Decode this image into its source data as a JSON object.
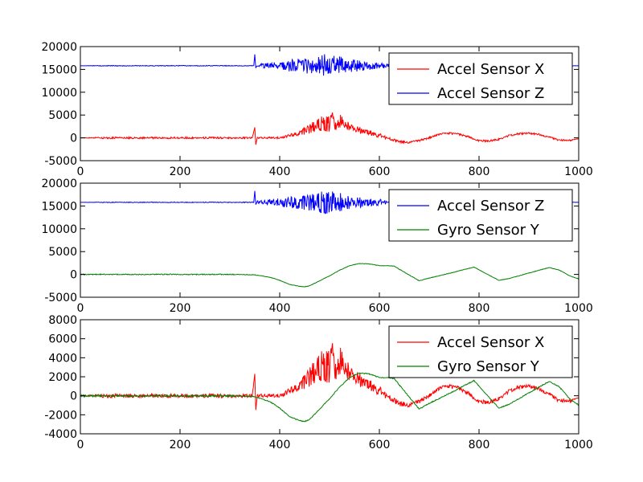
{
  "chart_data": [
    {
      "type": "line",
      "xlim": [
        0,
        1000
      ],
      "ylim": [
        -5000,
        20000
      ],
      "x_ticks": [
        0,
        200,
        400,
        600,
        800,
        1000
      ],
      "y_ticks": [
        -5000,
        0,
        5000,
        10000,
        15000,
        20000
      ],
      "legend_position": "upper-right",
      "grid": false,
      "series": [
        {
          "name": "Accel Sensor X",
          "color": "#ff0000",
          "x": [
            0,
            50,
            100,
            150,
            200,
            250,
            300,
            345,
            350,
            352,
            355,
            360,
            400,
            430,
            450,
            470,
            480,
            490,
            500,
            505,
            510,
            520,
            525,
            530,
            550,
            580,
            600,
            620,
            640,
            660,
            680,
            700,
            720,
            740,
            760,
            780,
            800,
            820,
            840,
            860,
            880,
            900,
            920,
            940,
            960,
            980,
            1000
          ],
          "y": [
            0,
            0,
            0,
            0,
            0,
            0,
            0,
            0,
            2300,
            -1500,
            0,
            0,
            0,
            800,
            1500,
            2500,
            3000,
            3300,
            3000,
            5500,
            2500,
            3500,
            4000,
            3000,
            2000,
            1200,
            500,
            -200,
            -800,
            -1000,
            -600,
            0,
            800,
            1000,
            800,
            200,
            -600,
            -700,
            -300,
            500,
            900,
            1000,
            800,
            200,
            -500,
            -600,
            -200
          ],
          "noise": [
            0,
            200,
            200,
            200,
            200,
            200,
            200,
            150,
            0,
            0,
            150,
            200,
            200,
            400,
            800,
            1300,
            1500,
            1800,
            1800,
            600,
            1500,
            1500,
            1200,
            1000,
            800,
            600,
            500,
            300,
            300,
            200,
            200,
            200,
            200,
            200,
            200,
            200,
            200,
            200,
            200,
            200,
            200,
            200,
            200,
            200,
            200,
            200,
            0
          ]
        },
        {
          "name": "Accel Sensor Z",
          "color": "#0000ff",
          "x": [
            0,
            50,
            100,
            150,
            200,
            250,
            300,
            348,
            350,
            352,
            355,
            360,
            380,
            400,
            420,
            450,
            470,
            480,
            490,
            500,
            505,
            510,
            520,
            530,
            560,
            580,
            600,
            620,
            650,
            700,
            750,
            800,
            850,
            900,
            950,
            1000
          ],
          "y": [
            15800,
            15800,
            15800,
            15800,
            15800,
            15800,
            15800,
            15800,
            18300,
            15300,
            15900,
            15800,
            15800,
            15800,
            15800,
            15800,
            15800,
            15800,
            15800,
            15800,
            15800,
            15800,
            15800,
            15800,
            15800,
            15800,
            15800,
            15800,
            15800,
            15800,
            15800,
            15800,
            15800,
            15800,
            15800,
            15800
          ],
          "noise": [
            0,
            80,
            80,
            80,
            80,
            80,
            80,
            80,
            0,
            0,
            300,
            400,
            700,
            900,
            1300,
            1700,
            2000,
            2300,
            2600,
            2400,
            3000,
            2600,
            2200,
            1600,
            1200,
            900,
            700,
            400,
            200,
            200,
            200,
            200,
            200,
            200,
            200,
            0
          ]
        }
      ]
    },
    {
      "type": "line",
      "xlim": [
        0,
        1000
      ],
      "ylim": [
        -5000,
        20000
      ],
      "x_ticks": [
        0,
        200,
        400,
        600,
        800,
        1000
      ],
      "y_ticks": [
        -5000,
        0,
        5000,
        10000,
        15000,
        20000
      ],
      "legend_position": "upper-right",
      "grid": false,
      "series": [
        {
          "name": "Accel Sensor Z",
          "color": "#0000ff",
          "x": [
            0,
            50,
            100,
            150,
            200,
            250,
            300,
            348,
            350,
            352,
            355,
            360,
            380,
            400,
            420,
            450,
            470,
            480,
            490,
            500,
            505,
            510,
            520,
            530,
            560,
            580,
            600,
            620,
            650,
            700,
            750,
            800,
            850,
            900,
            950,
            1000
          ],
          "y": [
            15800,
            15800,
            15800,
            15800,
            15800,
            15800,
            15800,
            15800,
            18300,
            15300,
            15900,
            15800,
            15800,
            15800,
            15800,
            15800,
            15800,
            15800,
            15800,
            15800,
            15800,
            15800,
            15800,
            15800,
            15800,
            15800,
            15800,
            15800,
            15800,
            15800,
            15800,
            15800,
            15800,
            15800,
            15800,
            15800
          ],
          "noise": [
            0,
            80,
            80,
            80,
            80,
            80,
            80,
            80,
            0,
            0,
            300,
            400,
            700,
            900,
            1300,
            1700,
            2000,
            2300,
            2600,
            2400,
            3000,
            2600,
            2200,
            1600,
            1200,
            900,
            700,
            400,
            200,
            200,
            200,
            200,
            200,
            200,
            200,
            0
          ]
        },
        {
          "name": "Gyro Sensor Y",
          "color": "#008000",
          "x": [
            0,
            100,
            200,
            300,
            350,
            380,
            400,
            420,
            440,
            450,
            460,
            480,
            500,
            520,
            540,
            560,
            580,
            600,
            620,
            630,
            650,
            680,
            700,
            750,
            790,
            840,
            860,
            900,
            940,
            960,
            980,
            1000
          ],
          "y": [
            0,
            0,
            0,
            0,
            -100,
            -600,
            -1300,
            -2200,
            -2600,
            -2700,
            -2500,
            -1400,
            -300,
            900,
            1900,
            2400,
            2300,
            1900,
            1900,
            1800,
            500,
            -1400,
            -800,
            500,
            1600,
            -1300,
            -900,
            300,
            1500,
            1000,
            -200,
            -1000
          ],
          "noise": [
            100,
            100,
            100,
            100,
            50,
            50,
            50,
            50,
            50,
            50,
            50,
            50,
            50,
            50,
            50,
            50,
            50,
            50,
            50,
            50,
            50,
            50,
            50,
            50,
            50,
            50,
            50,
            50,
            50,
            50,
            50,
            50
          ]
        }
      ]
    },
    {
      "type": "line",
      "xlim": [
        0,
        1000
      ],
      "ylim": [
        -4000,
        8000
      ],
      "x_ticks": [
        0,
        200,
        400,
        600,
        800,
        1000
      ],
      "y_ticks": [
        -4000,
        -2000,
        0,
        2000,
        4000,
        6000,
        8000
      ],
      "legend_position": "upper-right",
      "grid": false,
      "series": [
        {
          "name": "Accel Sensor X",
          "color": "#ff0000",
          "x": [
            0,
            50,
            100,
            150,
            200,
            250,
            300,
            345,
            350,
            352,
            355,
            360,
            400,
            430,
            450,
            470,
            480,
            490,
            500,
            505,
            510,
            520,
            525,
            530,
            550,
            580,
            600,
            620,
            640,
            660,
            680,
            700,
            720,
            740,
            760,
            780,
            800,
            820,
            840,
            860,
            880,
            900,
            920,
            940,
            960,
            980,
            1000
          ],
          "y": [
            0,
            0,
            0,
            0,
            0,
            0,
            0,
            0,
            2300,
            -1500,
            0,
            0,
            0,
            800,
            1500,
            2500,
            3000,
            3300,
            3000,
            5500,
            2500,
            3500,
            4000,
            3000,
            2000,
            1200,
            500,
            -200,
            -800,
            -1000,
            -600,
            0,
            800,
            1000,
            800,
            200,
            -600,
            -700,
            -300,
            500,
            900,
            1000,
            800,
            200,
            -500,
            -600,
            -200
          ],
          "noise": [
            0,
            200,
            200,
            200,
            200,
            200,
            200,
            150,
            0,
            0,
            150,
            200,
            200,
            400,
            800,
            1300,
            1500,
            1800,
            1800,
            600,
            1500,
            1500,
            1200,
            1000,
            800,
            600,
            500,
            300,
            300,
            200,
            200,
            200,
            200,
            200,
            200,
            200,
            200,
            200,
            200,
            200,
            200,
            200,
            200,
            200,
            200,
            200,
            0
          ]
        },
        {
          "name": "Gyro Sensor Y",
          "color": "#008000",
          "x": [
            0,
            100,
            200,
            300,
            350,
            380,
            400,
            420,
            440,
            450,
            460,
            480,
            500,
            520,
            540,
            560,
            580,
            600,
            620,
            630,
            650,
            680,
            700,
            750,
            790,
            840,
            860,
            900,
            940,
            960,
            980,
            1000
          ],
          "y": [
            0,
            0,
            0,
            0,
            -100,
            -600,
            -1300,
            -2200,
            -2600,
            -2700,
            -2500,
            -1400,
            -300,
            900,
            1900,
            2400,
            2300,
            1900,
            1900,
            1800,
            500,
            -1400,
            -800,
            500,
            1600,
            -1300,
            -900,
            300,
            1500,
            1000,
            -200,
            -1000
          ],
          "noise": [
            100,
            100,
            100,
            100,
            50,
            50,
            50,
            50,
            50,
            50,
            50,
            50,
            50,
            50,
            50,
            50,
            50,
            50,
            50,
            50,
            50,
            50,
            50,
            50,
            50,
            50,
            50,
            50,
            50,
            50,
            50,
            50
          ]
        }
      ]
    }
  ]
}
